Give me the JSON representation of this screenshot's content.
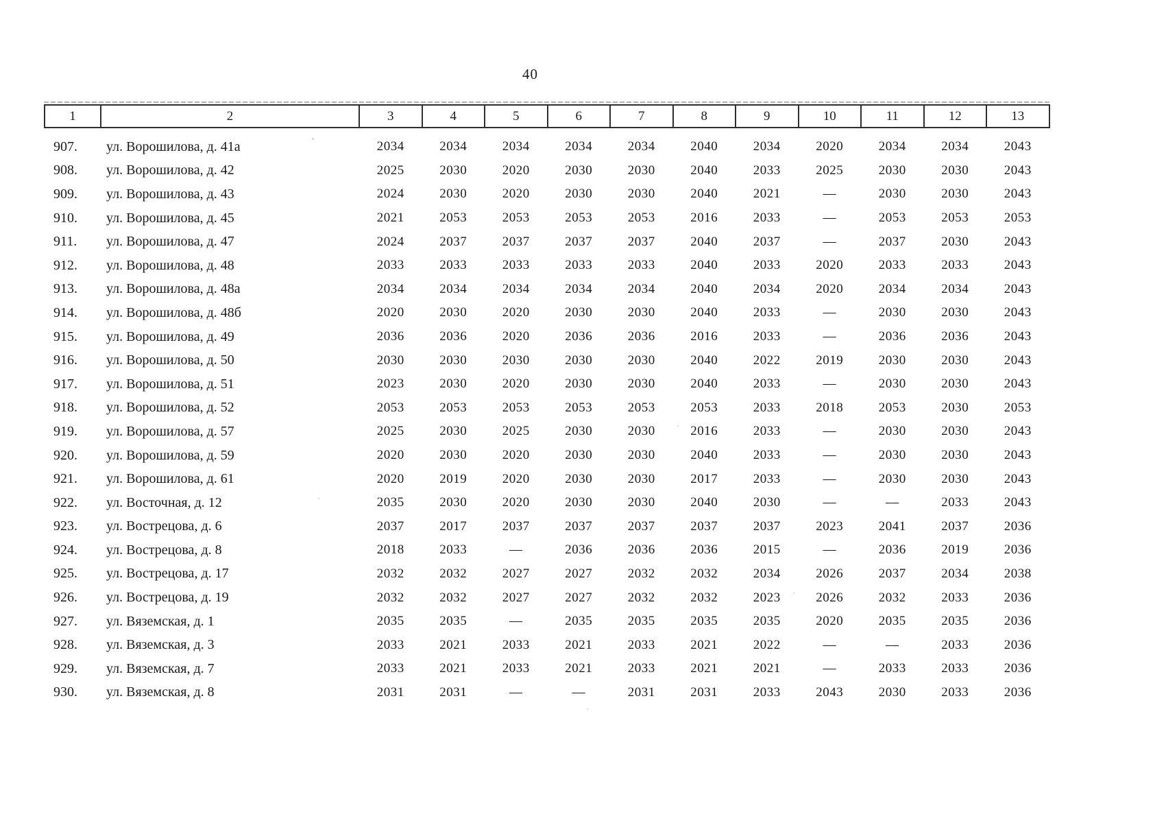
{
  "page": {
    "number": "40"
  },
  "table": {
    "headers": [
      "1",
      "2",
      "3",
      "4",
      "5",
      "6",
      "7",
      "8",
      "9",
      "10",
      "11",
      "12",
      "13"
    ],
    "rows": [
      {
        "num": "907.",
        "address": "ул. Ворошилова, д. 41а",
        "values": [
          "2034",
          "2034",
          "2034",
          "2034",
          "2034",
          "2040",
          "2034",
          "2020",
          "2034",
          "2034",
          "2043"
        ]
      },
      {
        "num": "908.",
        "address": "ул. Ворошилова, д. 42",
        "values": [
          "2025",
          "2030",
          "2020",
          "2030",
          "2030",
          "2040",
          "2033",
          "2025",
          "2030",
          "2030",
          "2043"
        ]
      },
      {
        "num": "909.",
        "address": "ул. Ворошилова, д. 43",
        "values": [
          "2024",
          "2030",
          "2020",
          "2030",
          "2030",
          "2040",
          "2021",
          "—",
          "2030",
          "2030",
          "2043"
        ]
      },
      {
        "num": "910.",
        "address": "ул. Ворошилова, д. 45",
        "values": [
          "2021",
          "2053",
          "2053",
          "2053",
          "2053",
          "2016",
          "2033",
          "—",
          "2053",
          "2053",
          "2053"
        ]
      },
      {
        "num": "911.",
        "address": "ул. Ворошилова, д. 47",
        "values": [
          "2024",
          "2037",
          "2037",
          "2037",
          "2037",
          "2040",
          "2037",
          "—",
          "2037",
          "2030",
          "2043"
        ]
      },
      {
        "num": "912.",
        "address": "ул. Ворошилова, д. 48",
        "values": [
          "2033",
          "2033",
          "2033",
          "2033",
          "2033",
          "2040",
          "2033",
          "2020",
          "2033",
          "2033",
          "2043"
        ]
      },
      {
        "num": "913.",
        "address": "ул. Ворошилова, д. 48а",
        "values": [
          "2034",
          "2034",
          "2034",
          "2034",
          "2034",
          "2040",
          "2034",
          "2020",
          "2034",
          "2034",
          "2043"
        ]
      },
      {
        "num": "914.",
        "address": "ул. Ворошилова, д. 48б",
        "values": [
          "2020",
          "2030",
          "2020",
          "2030",
          "2030",
          "2040",
          "2033",
          "—",
          "2030",
          "2030",
          "2043"
        ]
      },
      {
        "num": "915.",
        "address": "ул. Ворошилова, д. 49",
        "values": [
          "2036",
          "2036",
          "2020",
          "2036",
          "2036",
          "2016",
          "2033",
          "—",
          "2036",
          "2036",
          "2043"
        ]
      },
      {
        "num": "916.",
        "address": "ул. Ворошилова, д. 50",
        "values": [
          "2030",
          "2030",
          "2030",
          "2030",
          "2030",
          "2040",
          "2022",
          "2019",
          "2030",
          "2030",
          "2043"
        ]
      },
      {
        "num": "917.",
        "address": "ул. Ворошилова, д. 51",
        "values": [
          "2023",
          "2030",
          "2020",
          "2030",
          "2030",
          "2040",
          "2033",
          "—",
          "2030",
          "2030",
          "2043"
        ]
      },
      {
        "num": "918.",
        "address": "ул. Ворошилова, д. 52",
        "values": [
          "2053",
          "2053",
          "2053",
          "2053",
          "2053",
          "2053",
          "2033",
          "2018",
          "2053",
          "2030",
          "2053"
        ]
      },
      {
        "num": "919.",
        "address": "ул. Ворошилова, д. 57",
        "values": [
          "2025",
          "2030",
          "2025",
          "2030",
          "2030",
          "2016",
          "2033",
          "—",
          "2030",
          "2030",
          "2043"
        ]
      },
      {
        "num": "920.",
        "address": "ул. Ворошилова, д. 59",
        "values": [
          "2020",
          "2030",
          "2020",
          "2030",
          "2030",
          "2040",
          "2033",
          "—",
          "2030",
          "2030",
          "2043"
        ]
      },
      {
        "num": "921.",
        "address": "ул. Ворошилова, д. 61",
        "values": [
          "2020",
          "2019",
          "2020",
          "2030",
          "2030",
          "2017",
          "2033",
          "—",
          "2030",
          "2030",
          "2043"
        ]
      },
      {
        "num": "922.",
        "address": "ул. Восточная, д. 12",
        "values": [
          "2035",
          "2030",
          "2020",
          "2030",
          "2030",
          "2040",
          "2030",
          "—",
          "—",
          "2033",
          "2043"
        ]
      },
      {
        "num": "923.",
        "address": "ул. Вострецова, д. 6",
        "values": [
          "2037",
          "2017",
          "2037",
          "2037",
          "2037",
          "2037",
          "2037",
          "2023",
          "2041",
          "2037",
          "2036"
        ]
      },
      {
        "num": "924.",
        "address": "ул. Вострецова, д. 8",
        "values": [
          "2018",
          "2033",
          "—",
          "2036",
          "2036",
          "2036",
          "2015",
          "—",
          "2036",
          "2019",
          "2036"
        ]
      },
      {
        "num": "925.",
        "address": "ул. Вострецова, д. 17",
        "values": [
          "2032",
          "2032",
          "2027",
          "2027",
          "2032",
          "2032",
          "2034",
          "2026",
          "2037",
          "2034",
          "2038"
        ]
      },
      {
        "num": "926.",
        "address": "ул. Вострецова, д. 19",
        "values": [
          "2032",
          "2032",
          "2027",
          "2027",
          "2032",
          "2032",
          "2023",
          "2026",
          "2032",
          "2033",
          "2036"
        ]
      },
      {
        "num": "927.",
        "address": "ул. Вяземская, д. 1",
        "values": [
          "2035",
          "2035",
          "—",
          "2035",
          "2035",
          "2035",
          "2035",
          "2020",
          "2035",
          "2035",
          "2036"
        ]
      },
      {
        "num": "928.",
        "address": "ул. Вяземская, д. 3",
        "values": [
          "2033",
          "2021",
          "2033",
          "2021",
          "2033",
          "2021",
          "2022",
          "—",
          "—",
          "2033",
          "2036"
        ]
      },
      {
        "num": "929.",
        "address": "ул. Вяземская, д. 7",
        "values": [
          "2033",
          "2021",
          "2033",
          "2021",
          "2033",
          "2021",
          "2021",
          "—",
          "2033",
          "2033",
          "2036"
        ]
      },
      {
        "num": "930.",
        "address": "ул. Вяземская, д. 8",
        "values": [
          "2031",
          "2031",
          "—",
          "—",
          "2031",
          "2031",
          "2033",
          "2043",
          "2030",
          "2033",
          "2036"
        ]
      }
    ]
  }
}
